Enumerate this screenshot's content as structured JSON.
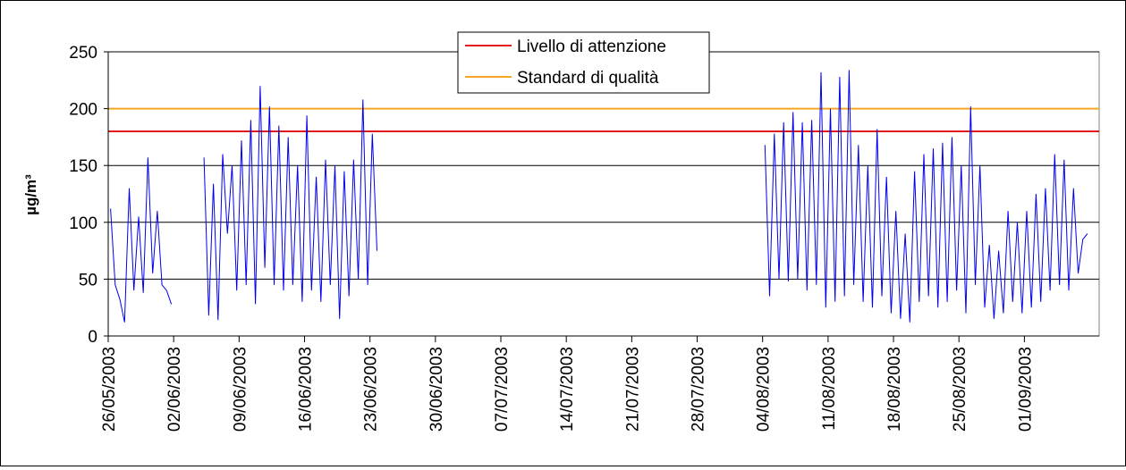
{
  "chart_data": {
    "type": "line",
    "title": "",
    "xlabel": "",
    "ylabel": "µg/m³",
    "ylim": [
      0,
      250
    ],
    "yticks": [
      0,
      50,
      100,
      150,
      200,
      250
    ],
    "xlim": [
      "2003-05-26",
      "2003-09-08"
    ],
    "xtick_labels": [
      "26/05/2003",
      "02/06/2003",
      "09/06/2003",
      "16/06/2003",
      "23/06/2003",
      "30/06/2003",
      "07/07/2003",
      "14/07/2003",
      "21/07/2003",
      "28/07/2003",
      "04/08/2003",
      "11/08/2003",
      "18/08/2003",
      "25/08/2003",
      "01/09/2003"
    ],
    "grid": "horizontal",
    "legend_position": "top-center",
    "reference_lines": [
      {
        "name": "Livello di attenzione",
        "value": 180,
        "color": "#e31a1c"
      },
      {
        "name": "Standard di qualità",
        "value": 200,
        "color": "#f5a623"
      }
    ],
    "series_color": "#0000ee",
    "series": [
      {
        "values_note_free": true,
        "points": [
          [
            "2003-05-26",
            112
          ],
          [
            "2003-05-26",
            45
          ],
          [
            "2003-05-27",
            32
          ],
          [
            "2003-05-27",
            12
          ],
          [
            "2003-05-28",
            130
          ],
          [
            "2003-05-28",
            40
          ],
          [
            "2003-05-29",
            105
          ],
          [
            "2003-05-29",
            38
          ],
          [
            "2003-05-30",
            157
          ],
          [
            "2003-05-30",
            55
          ],
          [
            "2003-05-31",
            110
          ],
          [
            "2003-05-31",
            45
          ],
          [
            "2003-06-01",
            40
          ],
          [
            "2003-06-01",
            28
          ],
          [
            "2003-06-05",
            157
          ],
          [
            "2003-06-05",
            18
          ],
          [
            "2003-06-06",
            134
          ],
          [
            "2003-06-06",
            14
          ],
          [
            "2003-06-07",
            160
          ],
          [
            "2003-06-07",
            90
          ],
          [
            "2003-06-08",
            150
          ],
          [
            "2003-06-08",
            40
          ],
          [
            "2003-06-09",
            172
          ],
          [
            "2003-06-09",
            45
          ],
          [
            "2003-06-10",
            190
          ],
          [
            "2003-06-10",
            28
          ],
          [
            "2003-06-11",
            220
          ],
          [
            "2003-06-11",
            60
          ],
          [
            "2003-06-12",
            202
          ],
          [
            "2003-06-12",
            45
          ],
          [
            "2003-06-13",
            185
          ],
          [
            "2003-06-13",
            40
          ],
          [
            "2003-06-14",
            175
          ],
          [
            "2003-06-14",
            45
          ],
          [
            "2003-06-15",
            150
          ],
          [
            "2003-06-15",
            30
          ],
          [
            "2003-06-16",
            194
          ],
          [
            "2003-06-16",
            40
          ],
          [
            "2003-06-17",
            140
          ],
          [
            "2003-06-17",
            30
          ],
          [
            "2003-06-18",
            155
          ],
          [
            "2003-06-18",
            45
          ],
          [
            "2003-06-19",
            150
          ],
          [
            "2003-06-19",
            15
          ],
          [
            "2003-06-20",
            145
          ],
          [
            "2003-06-20",
            35
          ],
          [
            "2003-06-21",
            155
          ],
          [
            "2003-06-21",
            50
          ],
          [
            "2003-06-22",
            208
          ],
          [
            "2003-06-22",
            45
          ],
          [
            "2003-06-23",
            178
          ],
          [
            "2003-06-23",
            75
          ],
          [
            "2003-08-04",
            168
          ],
          [
            "2003-08-04",
            35
          ],
          [
            "2003-08-05",
            178
          ],
          [
            "2003-08-05",
            50
          ],
          [
            "2003-08-06",
            188
          ],
          [
            "2003-08-06",
            48
          ],
          [
            "2003-08-07",
            197
          ],
          [
            "2003-08-07",
            50
          ],
          [
            "2003-08-08",
            188
          ],
          [
            "2003-08-08",
            40
          ],
          [
            "2003-08-09",
            190
          ],
          [
            "2003-08-09",
            45
          ],
          [
            "2003-08-10",
            232
          ],
          [
            "2003-08-10",
            25
          ],
          [
            "2003-08-11",
            200
          ],
          [
            "2003-08-11",
            30
          ],
          [
            "2003-08-12",
            228
          ],
          [
            "2003-08-12",
            35
          ],
          [
            "2003-08-13",
            234
          ],
          [
            "2003-08-13",
            45
          ],
          [
            "2003-08-14",
            168
          ],
          [
            "2003-08-14",
            30
          ],
          [
            "2003-08-15",
            150
          ],
          [
            "2003-08-15",
            25
          ],
          [
            "2003-08-16",
            182
          ],
          [
            "2003-08-16",
            35
          ],
          [
            "2003-08-17",
            140
          ],
          [
            "2003-08-17",
            20
          ],
          [
            "2003-08-18",
            110
          ],
          [
            "2003-08-18",
            15
          ],
          [
            "2003-08-19",
            90
          ],
          [
            "2003-08-19",
            12
          ],
          [
            "2003-08-20",
            145
          ],
          [
            "2003-08-20",
            30
          ],
          [
            "2003-08-21",
            160
          ],
          [
            "2003-08-21",
            35
          ],
          [
            "2003-08-22",
            165
          ],
          [
            "2003-08-22",
            25
          ],
          [
            "2003-08-23",
            170
          ],
          [
            "2003-08-23",
            30
          ],
          [
            "2003-08-24",
            175
          ],
          [
            "2003-08-24",
            40
          ],
          [
            "2003-08-25",
            150
          ],
          [
            "2003-08-25",
            20
          ],
          [
            "2003-08-26",
            202
          ],
          [
            "2003-08-26",
            45
          ],
          [
            "2003-08-27",
            150
          ],
          [
            "2003-08-27",
            25
          ],
          [
            "2003-08-28",
            80
          ],
          [
            "2003-08-28",
            15
          ],
          [
            "2003-08-29",
            75
          ],
          [
            "2003-08-29",
            20
          ],
          [
            "2003-08-30",
            110
          ],
          [
            "2003-08-30",
            30
          ],
          [
            "2003-08-31",
            100
          ],
          [
            "2003-08-31",
            20
          ],
          [
            "2003-09-01",
            110
          ],
          [
            "2003-09-01",
            25
          ],
          [
            "2003-09-02",
            125
          ],
          [
            "2003-09-02",
            30
          ],
          [
            "2003-09-03",
            130
          ],
          [
            "2003-09-03",
            40
          ],
          [
            "2003-09-04",
            160
          ],
          [
            "2003-09-04",
            45
          ],
          [
            "2003-09-05",
            155
          ],
          [
            "2003-09-05",
            40
          ],
          [
            "2003-09-06",
            130
          ],
          [
            "2003-09-06",
            55
          ],
          [
            "2003-09-07",
            85
          ],
          [
            "2003-09-07",
            90
          ]
        ]
      }
    ]
  }
}
